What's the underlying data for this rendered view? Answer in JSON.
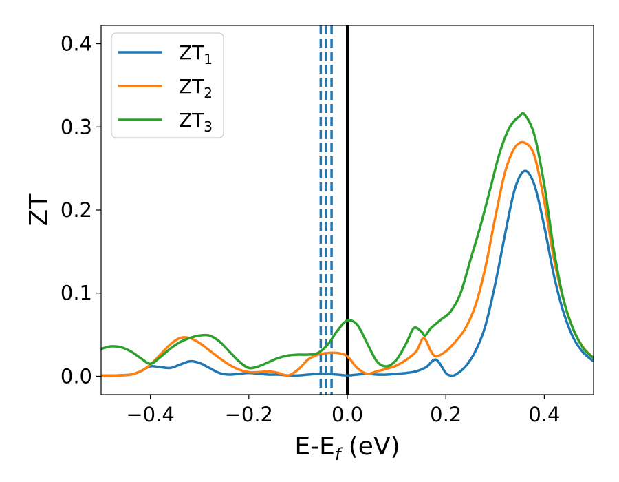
{
  "chart_data": {
    "type": "line",
    "title": "",
    "xlabel": "E-E",
    "xlabel_sub": "f",
    "xlabel_suffix": " (eV)",
    "ylabel": "ZT",
    "xlim": [
      -0.5,
      0.5
    ],
    "ylim": [
      -0.022,
      0.422
    ],
    "xticks": [
      -0.4,
      -0.2,
      0.0,
      0.2,
      0.4
    ],
    "xtick_labels": [
      "−0.4",
      "−0.2",
      "0.0",
      "0.2",
      "0.4"
    ],
    "yticks": [
      0.0,
      0.1,
      0.2,
      0.3,
      0.4
    ],
    "ytick_labels": [
      "0.0",
      "0.1",
      "0.2",
      "0.3",
      "0.4"
    ],
    "grid": false,
    "legend_position": "top-left",
    "vertical_lines": [
      {
        "x": 0.0,
        "color": "#000000",
        "style": "solid"
      },
      {
        "x": -0.054,
        "color": "#1f77b4",
        "style": "dashed"
      },
      {
        "x": -0.043,
        "color": "#1f77b4",
        "style": "dashed"
      },
      {
        "x": -0.032,
        "color": "#1f77b4",
        "style": "dashed"
      }
    ],
    "series": [
      {
        "name": "ZT",
        "subscript": "1",
        "color": "#1f77b4",
        "x": [
          -0.5,
          -0.47,
          -0.44,
          -0.42,
          -0.4,
          -0.38,
          -0.36,
          -0.34,
          -0.32,
          -0.3,
          -0.28,
          -0.26,
          -0.24,
          -0.22,
          -0.2,
          -0.18,
          -0.16,
          -0.14,
          -0.12,
          -0.1,
          -0.08,
          -0.06,
          -0.04,
          -0.02,
          0.0,
          0.02,
          0.04,
          0.06,
          0.08,
          0.1,
          0.12,
          0.14,
          0.16,
          0.18,
          0.2,
          0.21,
          0.22,
          0.24,
          0.26,
          0.28,
          0.3,
          0.32,
          0.34,
          0.36,
          0.38,
          0.4,
          0.42,
          0.44,
          0.46,
          0.48,
          0.5
        ],
        "y": [
          0.001,
          0.001,
          0.002,
          0.006,
          0.012,
          0.011,
          0.01,
          0.014,
          0.018,
          0.016,
          0.01,
          0.004,
          0.002,
          0.003,
          0.004,
          0.003,
          0.002,
          0.002,
          0.001,
          0.001,
          0.002,
          0.003,
          0.003,
          0.002,
          0.001,
          0.002,
          0.003,
          0.002,
          0.002,
          0.003,
          0.004,
          0.006,
          0.011,
          0.02,
          0.004,
          0.001,
          0.002,
          0.012,
          0.03,
          0.06,
          0.11,
          0.17,
          0.225,
          0.247,
          0.23,
          0.18,
          0.12,
          0.075,
          0.045,
          0.028,
          0.018
        ]
      },
      {
        "name": "ZT",
        "subscript": "2",
        "color": "#ff7f0e",
        "x": [
          -0.5,
          -0.47,
          -0.44,
          -0.42,
          -0.4,
          -0.38,
          -0.36,
          -0.34,
          -0.32,
          -0.3,
          -0.28,
          -0.26,
          -0.24,
          -0.22,
          -0.2,
          -0.18,
          -0.16,
          -0.14,
          -0.12,
          -0.1,
          -0.08,
          -0.06,
          -0.04,
          -0.02,
          0.0,
          0.02,
          0.04,
          0.06,
          0.08,
          0.1,
          0.12,
          0.14,
          0.155,
          0.17,
          0.18,
          0.2,
          0.22,
          0.24,
          0.26,
          0.28,
          0.3,
          0.32,
          0.34,
          0.36,
          0.38,
          0.4,
          0.42,
          0.44,
          0.46,
          0.48,
          0.5
        ],
        "y": [
          0.001,
          0.001,
          0.002,
          0.006,
          0.014,
          0.026,
          0.038,
          0.046,
          0.046,
          0.04,
          0.031,
          0.022,
          0.014,
          0.008,
          0.005,
          0.005,
          0.006,
          0.004,
          0.001,
          0.008,
          0.02,
          0.026,
          0.028,
          0.028,
          0.024,
          0.01,
          0.003,
          0.006,
          0.009,
          0.013,
          0.02,
          0.03,
          0.046,
          0.03,
          0.024,
          0.03,
          0.042,
          0.058,
          0.085,
          0.13,
          0.19,
          0.245,
          0.275,
          0.281,
          0.265,
          0.21,
          0.14,
          0.09,
          0.055,
          0.034,
          0.022
        ]
      },
      {
        "name": "ZT",
        "subscript": "3",
        "color": "#2ca02c",
        "x": [
          -0.5,
          -0.48,
          -0.46,
          -0.44,
          -0.42,
          -0.4,
          -0.38,
          -0.36,
          -0.34,
          -0.32,
          -0.3,
          -0.28,
          -0.26,
          -0.24,
          -0.22,
          -0.2,
          -0.18,
          -0.16,
          -0.14,
          -0.12,
          -0.1,
          -0.08,
          -0.06,
          -0.04,
          -0.02,
          0.0,
          0.02,
          0.04,
          0.06,
          0.08,
          0.1,
          0.12,
          0.135,
          0.15,
          0.158,
          0.17,
          0.19,
          0.21,
          0.23,
          0.25,
          0.27,
          0.29,
          0.31,
          0.33,
          0.35,
          0.36,
          0.38,
          0.4,
          0.42,
          0.44,
          0.46,
          0.48,
          0.5
        ],
        "y": [
          0.033,
          0.036,
          0.035,
          0.03,
          0.022,
          0.015,
          0.023,
          0.033,
          0.041,
          0.046,
          0.049,
          0.049,
          0.042,
          0.03,
          0.018,
          0.01,
          0.012,
          0.017,
          0.022,
          0.025,
          0.026,
          0.026,
          0.028,
          0.038,
          0.055,
          0.067,
          0.062,
          0.04,
          0.018,
          0.012,
          0.02,
          0.04,
          0.058,
          0.054,
          0.049,
          0.058,
          0.068,
          0.078,
          0.1,
          0.14,
          0.18,
          0.225,
          0.27,
          0.3,
          0.313,
          0.315,
          0.29,
          0.23,
          0.15,
          0.09,
          0.055,
          0.033,
          0.022
        ]
      }
    ]
  }
}
